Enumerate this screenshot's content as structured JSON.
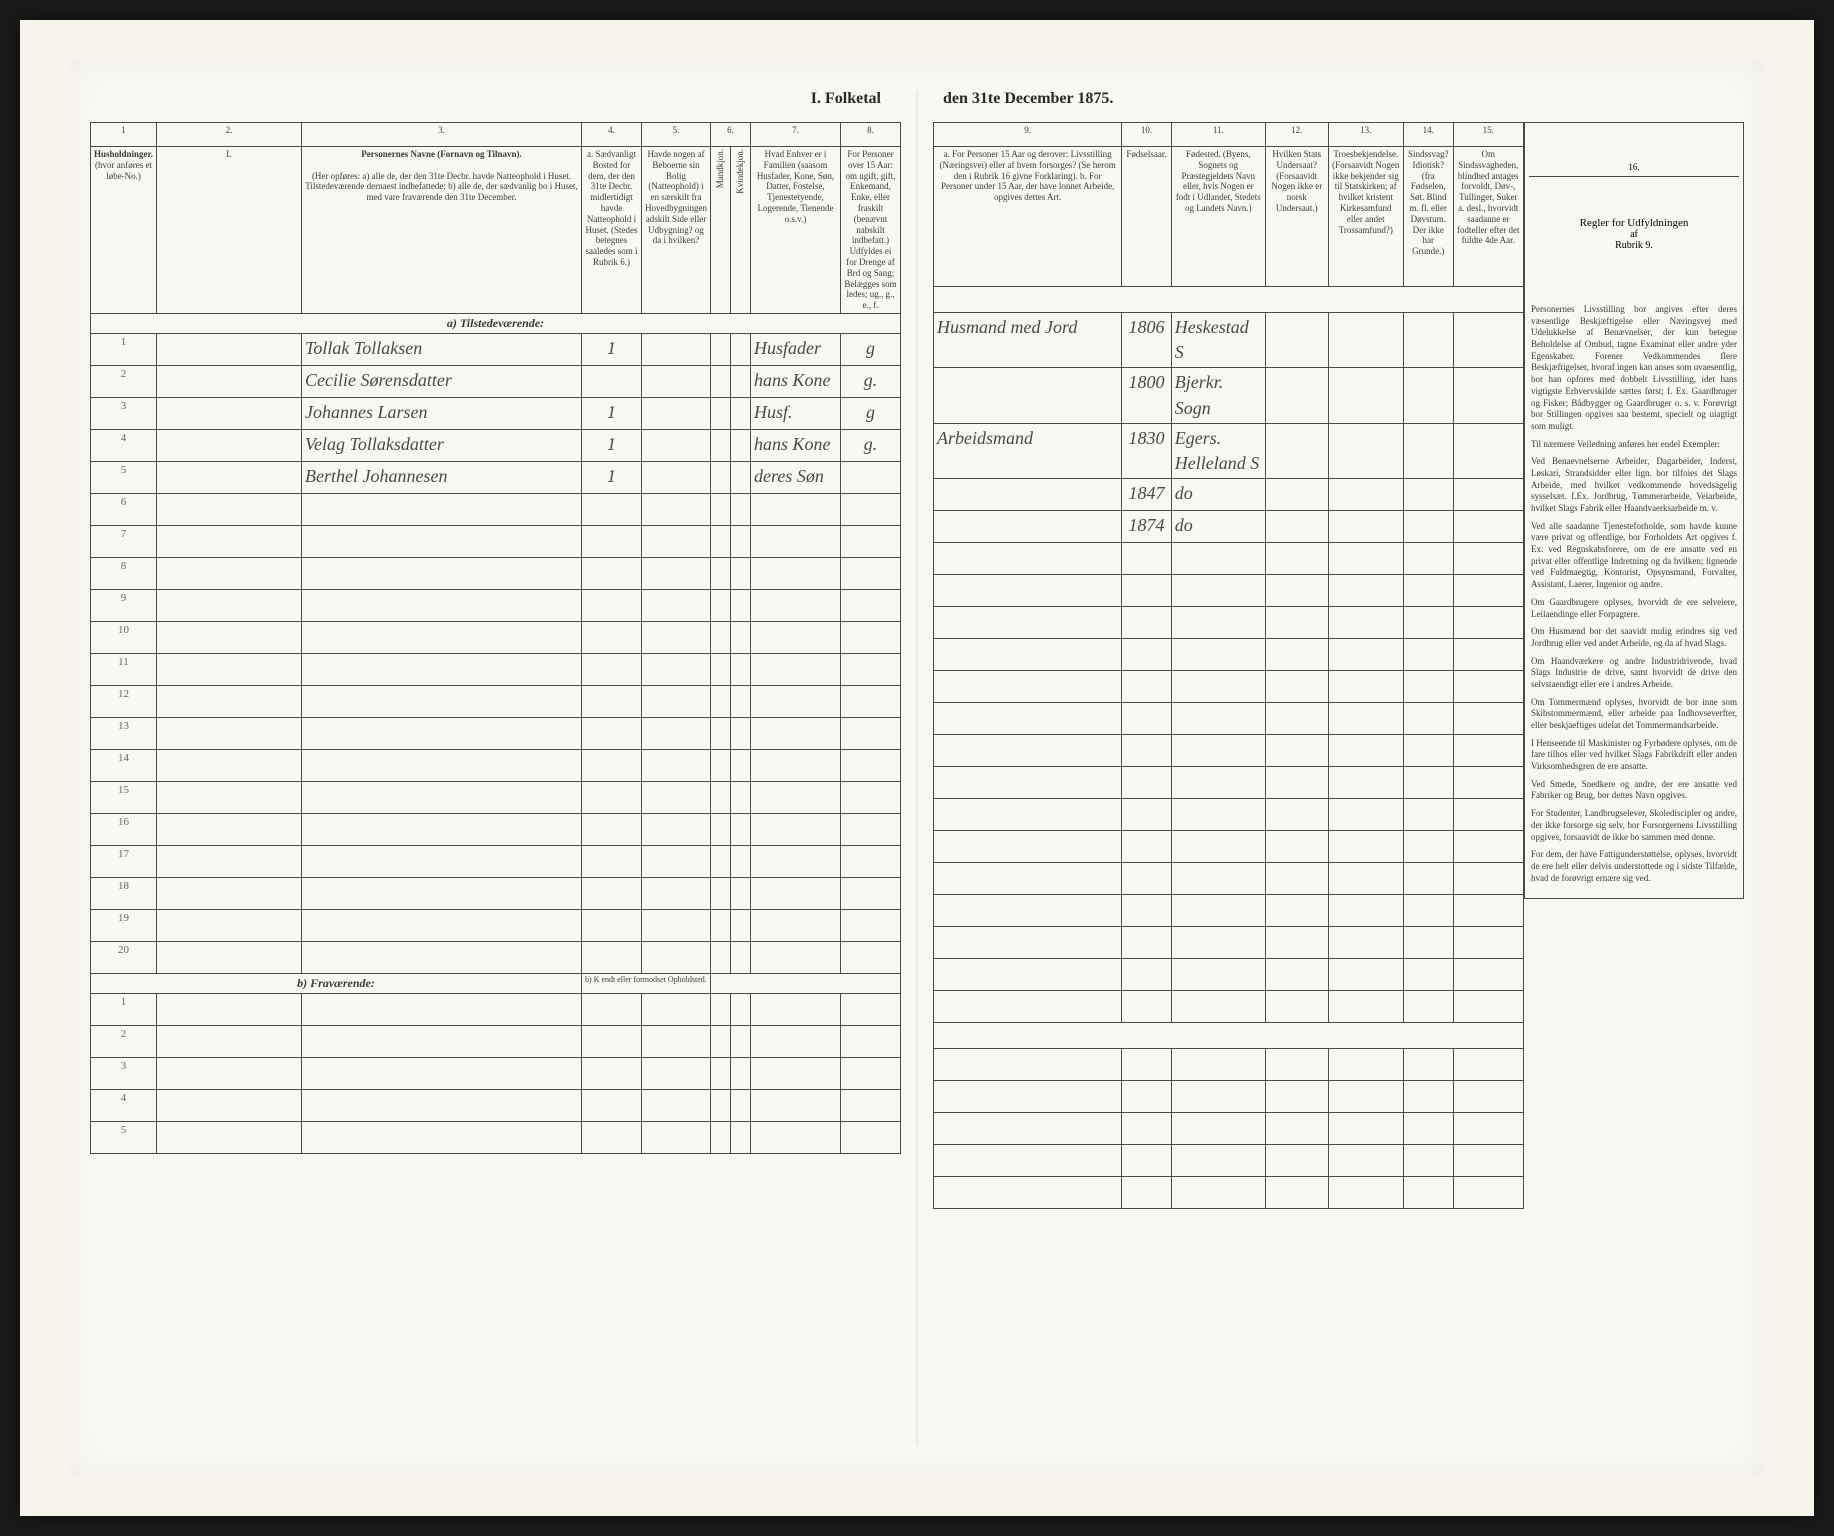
{
  "title_left": "I. Folketal",
  "title_right": "den 31te December 1875.",
  "col_numbers": [
    "1",
    "2.",
    "3.",
    "4.",
    "5.",
    "6.",
    "7.",
    "8.",
    "9.",
    "10.",
    "11.",
    "12.",
    "13.",
    "14.",
    "15.",
    "16."
  ],
  "headers": {
    "col1": "Husholdninger.",
    "col1_sub": "(hvor anføres et løbe-No.)",
    "col2": "L",
    "col3": "Personernes Navne (Fornavn og Tilnavn).",
    "col3_sub": "(Her opføres:\na) alle de, der den 31te Decbr. havde Natteophold i Huset. Tilstedeværende dernaest indbefattede;\nb) alle de, der sædvanlig bo i Huset, med vare fraværende den 31te December.",
    "col4": "a. Sædvanligt Bosted for dem, der den 31te Decbr. midlertidigt havde Natteophold i Huset. (Stedes betegnes saaledes som i Rubrik 6.)",
    "col5": "Havde nogen af Beboerne sin Bolig (Natteophold) i en særskilt fra Hovedbygningen adskilt Side eller Udbygning? og da i hvilken?",
    "col6": "Kjonnet sat in et Kryds i vedkomm. Rubrik.",
    "col6_sub1": "Mandkjon.",
    "col6_sub2": "Kvindekjon.",
    "col7": "Hvad Enhver er i Familien (saasom Husfader, Kone, Søn, Datter, Fostelse, Tjenestetyende, Logerende, Tienende o.s.v.)",
    "col8": "For Personer over 15 Aar: om ugift, gift, Enkemand, Enke, eller fraskilt (benævnt nabskilt indbefatt.) Udfyldes ei for Drenge af Brd og Sang; Belægges som ledes; ug., g., e., f.",
    "col9": "a. For Personer 15 Aar og derover: Livsstilling (Næringsvei) eller af hvem forsorges? (Se herom den i Rubrik 16 givne Forklaring).\nb. For Personer under 15 Aar, der have lonnet Arbeide, opgives dettes Art.",
    "col10": "Fødselsaar.",
    "col11": "Fødested.\n(Byens, Sognets og Præstegjeldets Navn eller, hvis Nogen er fodt i Udlandet, Stedets og Landets Navn.)",
    "col12": "Hvilken Stats Undersaat?\n(Forsaavidt Nogen ikke er norsk Undersaat.)",
    "col13": "Troesbekjendelse.\n(Forsaavidt Nogen ikke bekjender sig til Statskirken; af hvilket kristent Kirkesamfund eller andet Trossamfund?)",
    "col14": "Sindssvag? Idiotisk? (fra Fødselen, Søt. Blind m. fl. eller Døvstum. Der ikke har Grunde.)",
    "col15": "Om Sindssvagheden, blindhed antages forvoldt, Døv-, Tullinger, Suker a. desl., hvorvidt saadanne er fodteller efter det fuldte 4de Aar.",
    "col16_title": "Regler for Udfyldningen",
    "col16_sub": "af",
    "col16_sub2": "Rubrik 9."
  },
  "section_a": "a) Tilstedeværende:",
  "section_b": "b) Fraværende:",
  "section_b_note": "b) K endt eller formodset Opholdsted.",
  "entries": [
    {
      "num": "1",
      "name": "Tollak Tollaksen",
      "col4": "1",
      "family": "Husfader",
      "status": "g",
      "occupation": "Husmand med Jord",
      "year": "1806",
      "place": "Heskestad S"
    },
    {
      "num": "2",
      "name": "Cecilie Sørensdatter",
      "col4": "",
      "family": "hans Kone",
      "status": "g.",
      "occupation": "",
      "year": "1800",
      "place": "Bjerkr. Sogn"
    },
    {
      "num": "3",
      "name": "Johannes Larsen",
      "col4": "1",
      "family": "Husf.",
      "status": "g",
      "occupation": "Arbeidsmand",
      "year": "1830",
      "place": "Egers. Helleland S"
    },
    {
      "num": "4",
      "name": "Velag Tollaksdatter",
      "col4": "1",
      "family": "hans Kone",
      "status": "g.",
      "occupation": "",
      "year": "1847",
      "place": "do"
    },
    {
      "num": "5",
      "name": "Berthel Johannesen",
      "col4": "1",
      "family": "deres Søn",
      "status": "",
      "occupation": "",
      "year": "1874",
      "place": "do"
    }
  ],
  "empty_rows_a": [
    "6",
    "7",
    "8",
    "9",
    "10",
    "11",
    "12",
    "13",
    "14",
    "15",
    "16",
    "17",
    "18",
    "19",
    "20"
  ],
  "empty_rows_b": [
    "1",
    "2",
    "3",
    "4",
    "5"
  ],
  "rules_text": [
    "Personernes Livsstilling bor angives efter deres væsentlige Beskjæftigelse eller Næringsvej med Udelukkelse af Benævnelser, der kun betegne Beholdelse af Ombud, tagne Examinat eller andre yder Egenskaber. Forener Vedkommendes flere Beskjæftigelser, hvoraf ingen kan anses som uvaesentlig, bor han opfores med dobbelt Livsstilling, idet hans vigtigste Erhvervskilde sættes først; f. Ex. Gaardbruger og Fisker; Bådbygger og Gaardbruger o. s. v. Forøvrigt bor Stillingen opgives saa bestemt, specielt og uiagtigt som muligt.",
    "Til nærmere Veiledning anføres her endel Exempler:",
    "Ved Benaevnelserne Arbeider, Dagarbeider, Inderst, Løskari, Strandsidder eller lign. bor tilfoies det Slags Arbeide, med hvilket vedkommende hovedsagelig sysselsæt. f.Ex. Jordbrug, Tømmerarbeide, Veiarbeide, hvilket Slags Fabrik eller Haandvaerksarbeide m. v.",
    "Ved alle saadanne Tjenesteforholde, som havde kunne være privat og offentlige, bor Forholdets Art opgives f. Ex. ved Regnskabsforere, om de ere ansatte ved en privat eller offentlige Indretning og da hvilken; lignende ved Fuldmaegtig, Kontorist, Opsynsmand, Forvalter, Assistant, Laerer, Ingenior og andre.",
    "Om Gaardbrugere oplyses, hvorvidt de ere selveiere, Leilaendinge eller Forpagtere.",
    "Om Husmænd bor det saavidt mulig erindres sig ved Jordbrug eller ved andet Arbeide, og da af hvad Slags.",
    "Om Haandværkere og andre Industridrivende, hvad Slags Industrie de drive, samt hvorvidt de drive den selvstaendigt eller ere i andres Arbeide.",
    "Om Tommermænd oplyses, hvorvidt de bor inne som Skibstommermænd, eller arbeide paa Indhovseverfter, eller beskjaeftiges udelat det Tommermandsarbeide.",
    "I Henseende til Maskinister og Fyrbødere oplyses, om de fare tilhos eller ved hvilket Slags Fabrikdrift eller anden Virksomhedsgren de ere ansatte.",
    "Ved Smede, Snedkere og andre, der ere ansatte ved Fabriker og Brug, bor dettes Navn opgives.",
    "For Studenter, Landbrugselever, Skolediscipler og andre, der ikke forsorge sig selv, bor Forsorgernens Livsstilling opgives, forsaavidt de ikke bo sammen med denne.",
    "For dem, der have Fattigunderstøttelse, oplyses, hvorvidt de ere helt eller delvis understottede og i sidste Tilfælde, hvad de forøvrigt ernære sig ved."
  ]
}
